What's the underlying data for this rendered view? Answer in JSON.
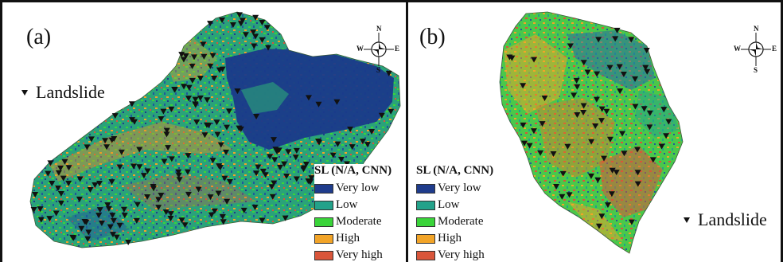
{
  "panels": [
    {
      "label": "(a)",
      "legend_title": "SL (N/A, CNN)",
      "marker_label": "Landslide"
    },
    {
      "label": "(b)",
      "legend_title": "SL (N/A, CNN)",
      "marker_label": "Landslide"
    }
  ],
  "compass": {
    "n": "N",
    "s": "S",
    "e": "E",
    "w": "W"
  },
  "legend_classes": [
    {
      "label": "Very low",
      "color": "#1f3c8c"
    },
    {
      "label": "Low",
      "color": "#23a28a"
    },
    {
      "label": "Moderate",
      "color": "#3ad43a"
    },
    {
      "label": "High",
      "color": "#f2a428"
    },
    {
      "label": "Very high",
      "color": "#d9553a"
    }
  ]
}
